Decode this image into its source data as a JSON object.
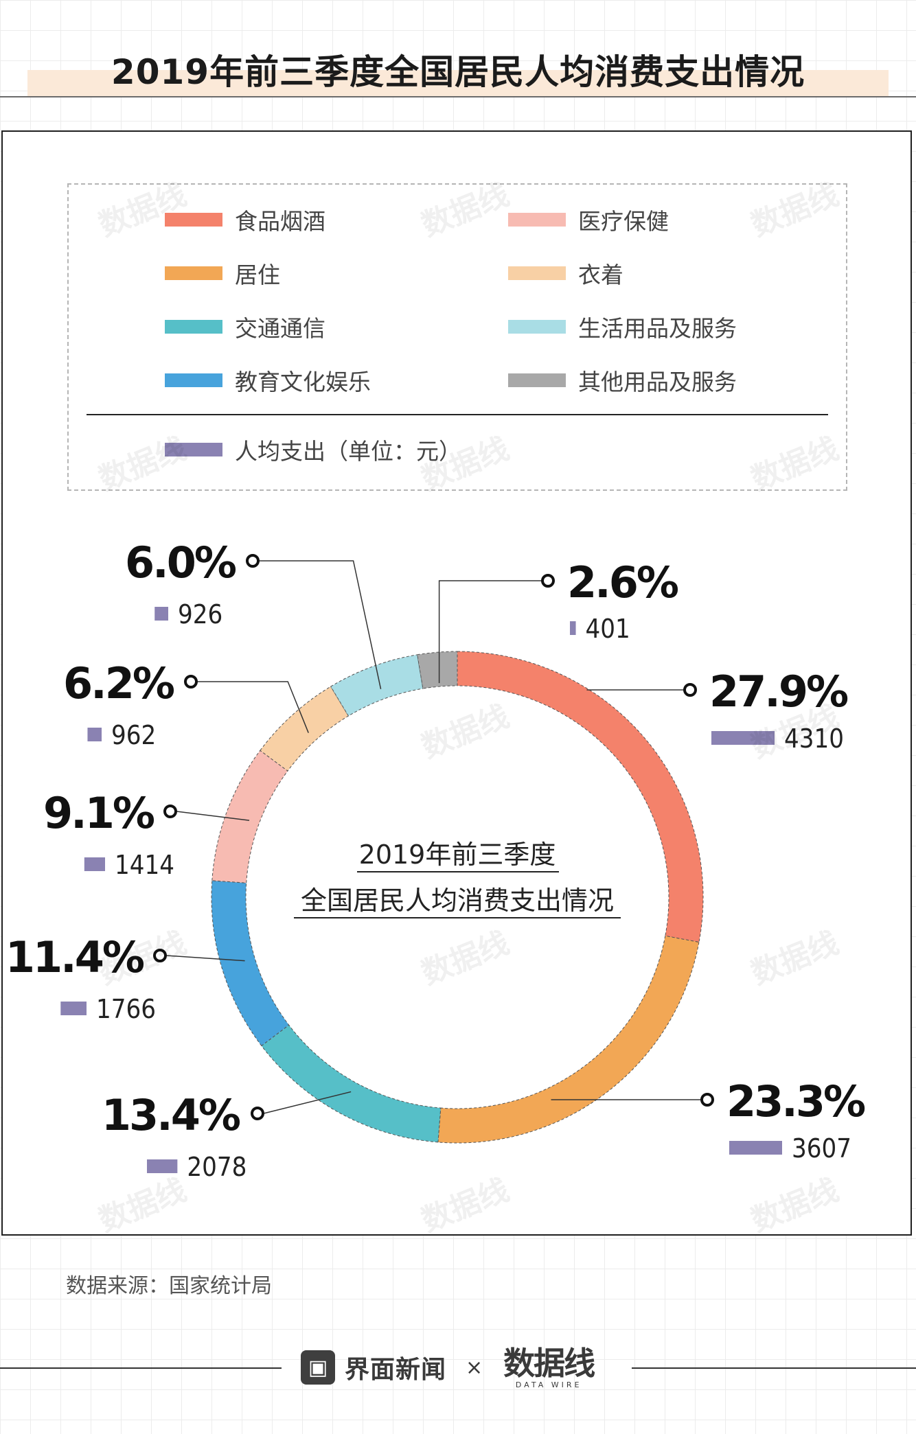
{
  "page_title": "2019年前三季度全国居民人均消费支出情况",
  "source_text": "数据来源：国家统计局",
  "footer": {
    "brand1": "界面新闻",
    "times": "×",
    "brand2": "数据线",
    "brand2_sub": "DATA WIRE"
  },
  "watermark_text": "数据线",
  "colors": {
    "food": "#f4826b",
    "housing": "#f2a755",
    "transport": "#56bfc8",
    "education": "#47a3dc",
    "medical": "#f7bbb2",
    "clothing": "#f8d0a5",
    "household": "#a9dde5",
    "other": "#a8a8a8",
    "bar": "#8a82b2"
  },
  "chart_data": {
    "type": "pie",
    "donut": true,
    "title": "2019年前三季度",
    "subtitle": "全国居民人均消费支出情况",
    "legend": [
      {
        "label": "食品烟酒",
        "color": "#f4826b"
      },
      {
        "label": "医疗保健",
        "color": "#f7bbb2"
      },
      {
        "label": "居住",
        "color": "#f2a755"
      },
      {
        "label": "衣着",
        "color": "#f8d0a5"
      },
      {
        "label": "交通通信",
        "color": "#56bfc8"
      },
      {
        "label": "生活用品及服务",
        "color": "#a9dde5"
      },
      {
        "label": "教育文化娱乐",
        "color": "#47a3dc"
      },
      {
        "label": "其他用品及服务",
        "color": "#a8a8a8"
      }
    ],
    "bar_legend": {
      "label": "人均支出（单位：元）",
      "color": "#8a82b2"
    },
    "slices": [
      {
        "category": "食品烟酒",
        "percent": 27.9,
        "percent_label": "27.9%",
        "value": 4310,
        "value_label": "4310",
        "color": "#f4826b"
      },
      {
        "category": "居住",
        "percent": 23.3,
        "percent_label": "23.3%",
        "value": 3607,
        "value_label": "3607",
        "color": "#f2a755"
      },
      {
        "category": "交通通信",
        "percent": 13.4,
        "percent_label": "13.4%",
        "value": 2078,
        "value_label": "2078",
        "color": "#56bfc8"
      },
      {
        "category": "教育文化娱乐",
        "percent": 11.4,
        "percent_label": "11.4%",
        "value": 1766,
        "value_label": "1766",
        "color": "#47a3dc"
      },
      {
        "category": "医疗保健",
        "percent": 9.1,
        "percent_label": "9.1%",
        "value": 1414,
        "value_label": "1414",
        "color": "#f7bbb2"
      },
      {
        "category": "衣着",
        "percent": 6.2,
        "percent_label": "6.2%",
        "value": 962,
        "value_label": "962",
        "color": "#f8d0a5"
      },
      {
        "category": "生活用品及服务",
        "percent": 6.0,
        "percent_label": "6.0%",
        "value": 926,
        "value_label": "926",
        "color": "#a9dde5"
      },
      {
        "category": "其他用品及服务",
        "percent": 2.6,
        "percent_label": "2.6%",
        "value": 401,
        "value_label": "401",
        "color": "#a8a8a8"
      }
    ]
  }
}
